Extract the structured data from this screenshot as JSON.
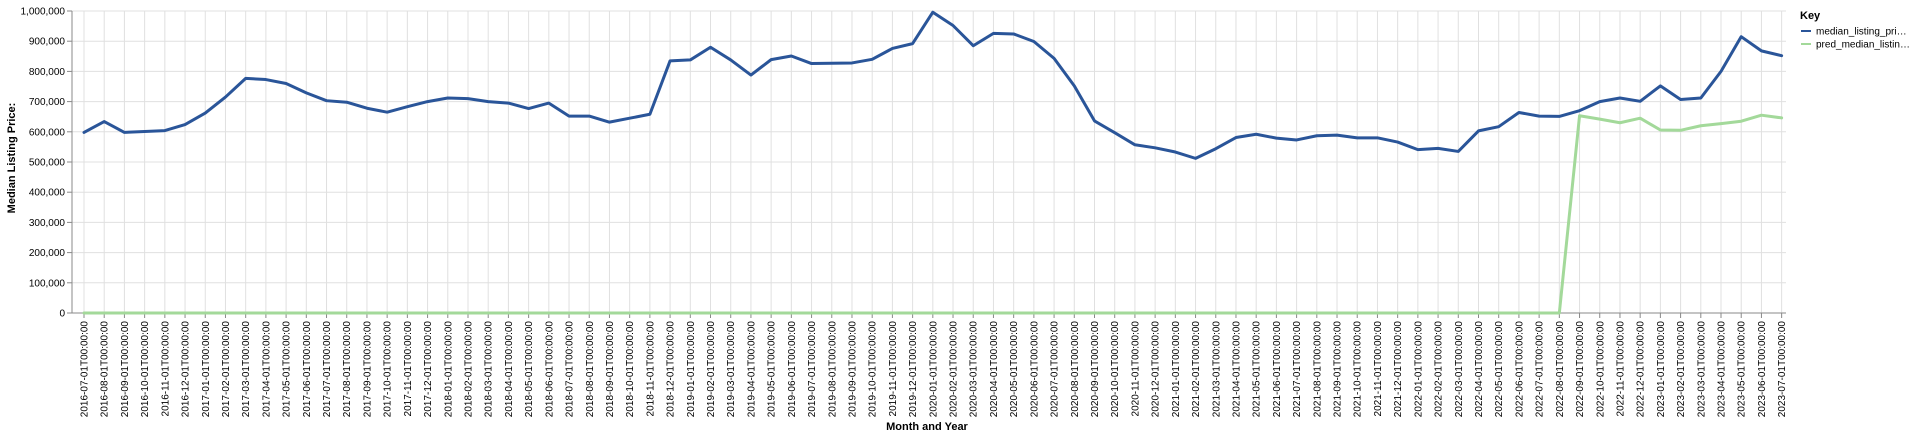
{
  "chart_data": {
    "type": "line",
    "xlabel": "Month and Year",
    "ylabel": "Median Listing Price:",
    "ylim": [
      0,
      1000000
    ],
    "y_ticks": [
      "0",
      "100,000",
      "200,000",
      "300,000",
      "400,000",
      "500,000",
      "600,000",
      "700,000",
      "800,000",
      "900,000",
      "1,000,000"
    ],
    "grid": true,
    "legend": {
      "title": "Key",
      "position": "right"
    },
    "categories": [
      "2016-07-01T00:00:00",
      "2016-08-01T00:00:00",
      "2016-09-01T00:00:00",
      "2016-10-01T00:00:00",
      "2016-11-01T00:00:00",
      "2016-12-01T00:00:00",
      "2017-01-01T00:00:00",
      "2017-02-01T00:00:00",
      "2017-03-01T00:00:00",
      "2017-04-01T00:00:00",
      "2017-05-01T00:00:00",
      "2017-06-01T00:00:00",
      "2017-07-01T00:00:00",
      "2017-08-01T00:00:00",
      "2017-09-01T00:00:00",
      "2017-10-01T00:00:00",
      "2017-11-01T00:00:00",
      "2017-12-01T00:00:00",
      "2018-01-01T00:00:00",
      "2018-02-01T00:00:00",
      "2018-03-01T00:00:00",
      "2018-04-01T00:00:00",
      "2018-05-01T00:00:00",
      "2018-06-01T00:00:00",
      "2018-07-01T00:00:00",
      "2018-08-01T00:00:00",
      "2018-09-01T00:00:00",
      "2018-10-01T00:00:00",
      "2018-11-01T00:00:00",
      "2018-12-01T00:00:00",
      "2019-01-01T00:00:00",
      "2019-02-01T00:00:00",
      "2019-03-01T00:00:00",
      "2019-04-01T00:00:00",
      "2019-05-01T00:00:00",
      "2019-06-01T00:00:00",
      "2019-07-01T00:00:00",
      "2019-08-01T00:00:00",
      "2019-09-01T00:00:00",
      "2019-10-01T00:00:00",
      "2019-11-01T00:00:00",
      "2019-12-01T00:00:00",
      "2020-01-01T00:00:00",
      "2020-02-01T00:00:00",
      "2020-03-01T00:00:00",
      "2020-04-01T00:00:00",
      "2020-05-01T00:00:00",
      "2020-06-01T00:00:00",
      "2020-07-01T00:00:00",
      "2020-08-01T00:00:00",
      "2020-09-01T00:00:00",
      "2020-10-01T00:00:00",
      "2020-11-01T00:00:00",
      "2020-12-01T00:00:00",
      "2021-01-01T00:00:00",
      "2021-02-01T00:00:00",
      "2021-03-01T00:00:00",
      "2021-04-01T00:00:00",
      "2021-05-01T00:00:00",
      "2021-06-01T00:00:00",
      "2021-07-01T00:00:00",
      "2021-08-01T00:00:00",
      "2021-09-01T00:00:00",
      "2021-10-01T00:00:00",
      "2021-11-01T00:00:00",
      "2021-12-01T00:00:00",
      "2022-01-01T00:00:00",
      "2022-02-01T00:00:00",
      "2022-03-01T00:00:00",
      "2022-04-01T00:00:00",
      "2022-05-01T00:00:00",
      "2022-06-01T00:00:00",
      "2022-07-01T00:00:00",
      "2022-08-01T00:00:00",
      "2022-09-01T00:00:00",
      "2022-10-01T00:00:00",
      "2022-11-01T00:00:00",
      "2022-12-01T00:00:00",
      "2023-01-01T00:00:00",
      "2023-02-01T00:00:00",
      "2023-03-01T00:00:00",
      "2023-04-01T00:00:00",
      "2023-05-01T00:00:00",
      "2023-06-01T00:00:00",
      "2023-07-01T00:00:00"
    ],
    "series": [
      {
        "name": "median_listing_pri…",
        "color": "#2a5599",
        "values": [
          598000,
          634000,
          598000,
          601000,
          604000,
          624000,
          662000,
          715000,
          777000,
          773000,
          760000,
          729000,
          703000,
          698000,
          678000,
          665000,
          683000,
          700000,
          712000,
          710000,
          700000,
          695000,
          677000,
          695000,
          652000,
          652000,
          632000,
          645000,
          658000,
          835000,
          838000,
          880000,
          838000,
          788000,
          839000,
          851000,
          826000,
          827000,
          828000,
          840000,
          876000,
          892000,
          996000,
          952000,
          885000,
          926000,
          924000,
          899000,
          843000,
          752000,
          636000,
          597000,
          557000,
          547000,
          533000,
          512000,
          544000,
          581000,
          592000,
          579000,
          573000,
          587000,
          589000,
          580000,
          580000,
          566000,
          541000,
          545000,
          535000,
          603000,
          617000,
          664000,
          652000,
          651000,
          670000,
          700000,
          712000,
          701000,
          752000,
          707000,
          712000,
          800000,
          915000,
          868000,
          852000
        ]
      },
      {
        "name": "pred_median_listin…",
        "color": "#a3d99a",
        "values": [
          0,
          0,
          0,
          0,
          0,
          0,
          0,
          0,
          0,
          0,
          0,
          0,
          0,
          0,
          0,
          0,
          0,
          0,
          0,
          0,
          0,
          0,
          0,
          0,
          0,
          0,
          0,
          0,
          0,
          0,
          0,
          0,
          0,
          0,
          0,
          0,
          0,
          0,
          0,
          0,
          0,
          0,
          0,
          0,
          0,
          0,
          0,
          0,
          0,
          0,
          0,
          0,
          0,
          0,
          0,
          0,
          0,
          0,
          0,
          0,
          0,
          0,
          0,
          0,
          0,
          0,
          0,
          0,
          0,
          0,
          0,
          0,
          0,
          0,
          653000,
          642000,
          630000,
          645000,
          606000,
          605000,
          620000,
          627000,
          635000,
          655000,
          646000
        ]
      }
    ]
  }
}
